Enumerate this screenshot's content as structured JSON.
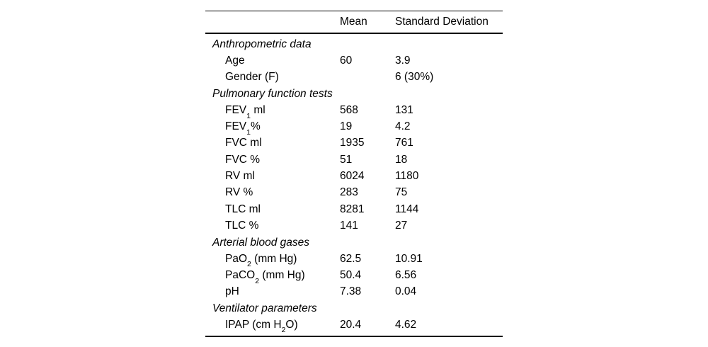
{
  "page": {
    "background_color": "#ffffff",
    "text_color": "#000000"
  },
  "table": {
    "header": {
      "label_column": "",
      "mean": "Mean",
      "sd": "Standard Deviation"
    },
    "sections": [
      {
        "title": "Anthropometric data",
        "rows": [
          {
            "label": "Age",
            "mean": "60",
            "sd": "3.9"
          },
          {
            "label": "Gender (F)",
            "mean": "",
            "sd": "6 (30%)"
          }
        ]
      },
      {
        "title": "Pulmonary function tests",
        "rows": [
          {
            "label": "FEV~1~ ml",
            "mean": "568",
            "sd": "131"
          },
          {
            "label": "FEV~1~%",
            "mean": "19",
            "sd": "4.2"
          },
          {
            "label": "FVC ml",
            "mean": "1935",
            "sd": "761"
          },
          {
            "label": "FVC %",
            "mean": "51",
            "sd": "18"
          },
          {
            "label": "RV ml",
            "mean": "6024",
            "sd": "1180"
          },
          {
            "label": "RV %",
            "mean": "283",
            "sd": "75"
          },
          {
            "label": "TLC ml",
            "mean": "8281",
            "sd": "1144"
          },
          {
            "label": "TLC %",
            "mean": "141",
            "sd": "27"
          }
        ]
      },
      {
        "title": "Arterial blood gases",
        "rows": [
          {
            "label": "PaO~2~ (mm Hg)",
            "mean": "62.5",
            "sd": "10.91"
          },
          {
            "label": "PaCO~2~ (mm Hg)",
            "mean": "50.4",
            "sd": "6.56"
          },
          {
            "label": "pH",
            "mean": "7.38",
            "sd": "0.04"
          }
        ]
      },
      {
        "title": "Ventilator parameters",
        "rows": [
          {
            "label": "IPAP (cm H~2~O)",
            "mean": "20.4",
            "sd": "4.62"
          }
        ]
      }
    ]
  }
}
